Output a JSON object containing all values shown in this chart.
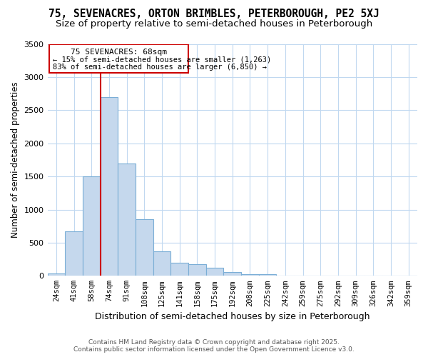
{
  "title": "75, SEVENACRES, ORTON BRIMBLES, PETERBOROUGH, PE2 5XJ",
  "subtitle": "Size of property relative to semi-detached houses in Peterborough",
  "xlabel": "Distribution of semi-detached houses by size in Peterborough",
  "ylabel": "Number of semi-detached properties",
  "categories": [
    "24sqm",
    "41sqm",
    "58sqm",
    "74sqm",
    "91sqm",
    "108sqm",
    "125sqm",
    "141sqm",
    "158sqm",
    "175sqm",
    "192sqm",
    "208sqm",
    "225sqm",
    "242sqm",
    "259sqm",
    "275sqm",
    "292sqm",
    "309sqm",
    "326sqm",
    "342sqm",
    "359sqm"
  ],
  "values": [
    40,
    670,
    1500,
    2700,
    1700,
    850,
    370,
    200,
    175,
    125,
    60,
    30,
    20,
    5,
    3,
    2,
    1,
    1,
    1,
    1,
    1
  ],
  "bar_color": "#c5d8ed",
  "bar_edge_color": "#7aaed6",
  "vline_color": "#cc0000",
  "annotation_title": "75 SEVENACRES: 68sqm",
  "annotation_line1": "← 15% of semi-detached houses are smaller (1,263)",
  "annotation_line2": "83% of semi-detached houses are larger (6,850) →",
  "annotation_box_color": "#cc0000",
  "ylim": [
    0,
    3500
  ],
  "yticks": [
    0,
    500,
    1000,
    1500,
    2000,
    2500,
    3000,
    3500
  ],
  "footer_line1": "Contains HM Land Registry data © Crown copyright and database right 2025.",
  "footer_line2": "Contains public sector information licensed under the Open Government Licence v3.0.",
  "bg_color": "#ffffff",
  "grid_color": "#c0d8f0",
  "title_fontsize": 10.5,
  "subtitle_fontsize": 9.5
}
